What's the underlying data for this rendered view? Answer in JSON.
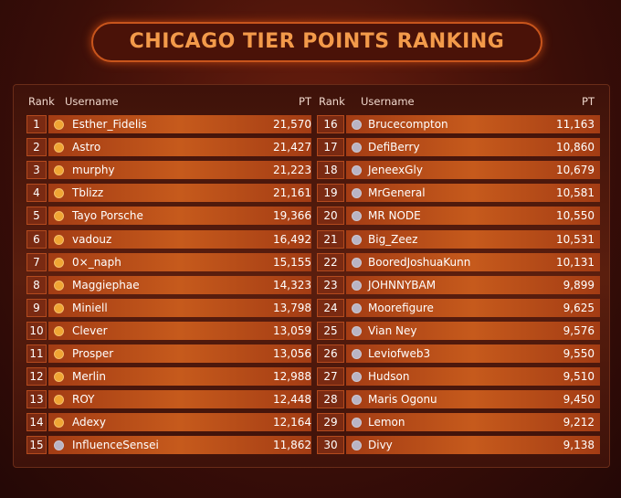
{
  "title": "CHICAGO TIER POINTS RANKING",
  "tables": [
    {
      "headers": [
        "Rank",
        "Username",
        "PT"
      ],
      "rows": [
        {
          "rank": 1,
          "username": "Esther_Fidelis",
          "pt": "21,570",
          "icon": "#f0a533"
        },
        {
          "rank": 2,
          "username": "Astro",
          "pt": "21,427",
          "icon": "#f0a533"
        },
        {
          "rank": 3,
          "username": "murphy",
          "pt": "21,223",
          "icon": "#f0a533"
        },
        {
          "rank": 4,
          "username": "Tblizz",
          "pt": "21,161",
          "icon": "#f0a533"
        },
        {
          "rank": 5,
          "username": "Tayo Porsche",
          "pt": "19,366",
          "icon": "#f0a533"
        },
        {
          "rank": 6,
          "username": "vadouz",
          "pt": "16,492",
          "icon": "#f0a533"
        },
        {
          "rank": 7,
          "username": "0×_naph",
          "pt": "15,155",
          "icon": "#f0a533"
        },
        {
          "rank": 8,
          "username": "Maggiephae",
          "pt": "14,323",
          "icon": "#f0a533"
        },
        {
          "rank": 9,
          "username": "Miniell",
          "pt": "13,798",
          "icon": "#f0a533"
        },
        {
          "rank": 10,
          "username": "Clever",
          "pt": "13,059",
          "icon": "#f0a533"
        },
        {
          "rank": 11,
          "username": "Prosper",
          "pt": "13,056",
          "icon": "#f0a533"
        },
        {
          "rank": 12,
          "username": "Merlin",
          "pt": "12,988",
          "icon": "#f0a533"
        },
        {
          "rank": 13,
          "username": "ROY",
          "pt": "12,448",
          "icon": "#f0a533"
        },
        {
          "rank": 14,
          "username": "Adexy",
          "pt": "12,164",
          "icon": "#f0a533"
        },
        {
          "rank": 15,
          "username": "InfluenceSensei",
          "pt": "11,862",
          "icon": "#b9b4c4"
        }
      ]
    },
    {
      "headers": [
        "Rank",
        "Username",
        "PT"
      ],
      "rows": [
        {
          "rank": 16,
          "username": "Brucecompton",
          "pt": "11,163",
          "icon": "#b9b4c4"
        },
        {
          "rank": 17,
          "username": "DefiBerry",
          "pt": "10,860",
          "icon": "#b9b4c4"
        },
        {
          "rank": 18,
          "username": "JeneexGly",
          "pt": "10,679",
          "icon": "#b9b4c4"
        },
        {
          "rank": 19,
          "username": "MrGeneral",
          "pt": "10,581",
          "icon": "#b9b4c4"
        },
        {
          "rank": 20,
          "username": "MR NODE",
          "pt": "10,550",
          "icon": "#b9b4c4"
        },
        {
          "rank": 21,
          "username": "Big_Zeez",
          "pt": "10,531",
          "icon": "#b9b4c4"
        },
        {
          "rank": 22,
          "username": "BooredJoshuaKunn",
          "pt": "10,131",
          "icon": "#b9b4c4"
        },
        {
          "rank": 23,
          "username": "JOHNNYBAM",
          "pt": "9,899",
          "icon": "#b9b4c4"
        },
        {
          "rank": 24,
          "username": "Moorefigure",
          "pt": "9,625",
          "icon": "#b9b4c4"
        },
        {
          "rank": 25,
          "username": "Vian Ney",
          "pt": "9,576",
          "icon": "#b9b4c4"
        },
        {
          "rank": 26,
          "username": "Leviofweb3",
          "pt": "9,550",
          "icon": "#b9b4c4"
        },
        {
          "rank": 27,
          "username": "Hudson",
          "pt": "9,510",
          "icon": "#b9b4c4"
        },
        {
          "rank": 28,
          "username": "Maris Ogonu",
          "pt": "9,450",
          "icon": "#b9b4c4"
        },
        {
          "rank": 29,
          "username": "Lemon",
          "pt": "9,212",
          "icon": "#b9b4c4"
        },
        {
          "rank": 30,
          "username": "Divy",
          "pt": "9,138",
          "icon": "#b9b4c4"
        }
      ]
    }
  ]
}
